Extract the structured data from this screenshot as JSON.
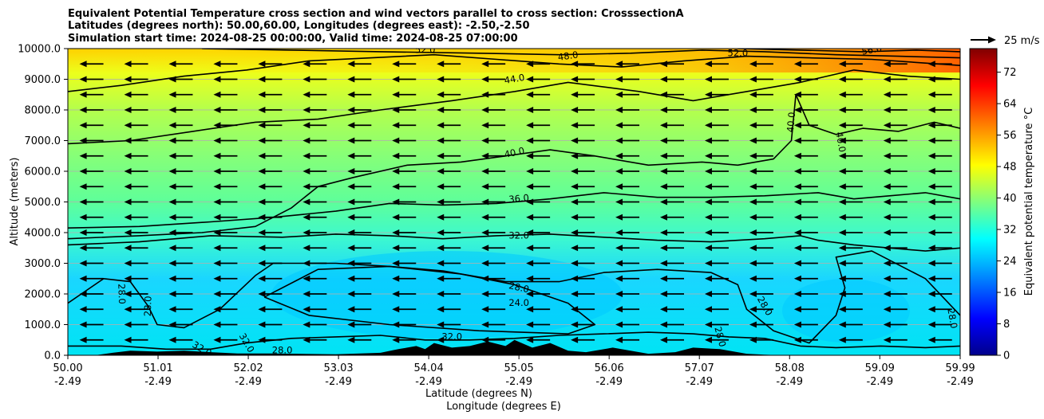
{
  "chart_data": {
    "type": "heatmap",
    "title_lines": [
      "Equivalent Potential Temperature cross section and wind vectors parallel to cross section: CrosssectionA",
      "Latitudes (degrees north): 50.00,60.00, Longitudes (degrees east): -2.50,-2.50",
      "Simulation start time: 2024-08-25 00:00:00, Valid time: 2024-08-25 07:00:00"
    ],
    "ylabel": "Altitude (meters)",
    "xlabel_lat": "Latitude (degrees N)",
    "xlabel_lon": "Longitude (degrees E)",
    "ylim": [
      0,
      10000
    ],
    "y_ticks": [
      "0.0",
      "1000.0",
      "2000.0",
      "3000.0",
      "4000.0",
      "5000.0",
      "6000.0",
      "7000.0",
      "8000.0",
      "9000.0",
      "10000.0"
    ],
    "y_tick_values": [
      0,
      1000,
      2000,
      3000,
      4000,
      5000,
      6000,
      7000,
      8000,
      9000,
      10000
    ],
    "xlim": [
      50.0,
      59.99
    ],
    "x_tick_values": [
      50.0,
      51.01,
      52.02,
      53.03,
      54.04,
      55.05,
      56.06,
      57.07,
      58.08,
      59.09,
      59.99
    ],
    "x_ticks_lat": [
      "50.00",
      "51.01",
      "52.02",
      "53.03",
      "54.04",
      "55.05",
      "56.06",
      "57.07",
      "58.08",
      "59.09",
      "59.99"
    ],
    "x_ticks_lon": [
      "-2.49",
      "-2.49",
      "-2.49",
      "-2.49",
      "-2.49",
      "-2.49",
      "-2.49",
      "-2.49",
      "-2.49",
      "-2.49",
      "-2.49"
    ],
    "colorbar": {
      "label": "Equivalent potential temperature  °C",
      "range": [
        0,
        78
      ],
      "ticks": [
        "0",
        "8",
        "16",
        "24",
        "32",
        "40",
        "48",
        "56",
        "64",
        "72"
      ],
      "tick_values": [
        0,
        8,
        16,
        24,
        32,
        40,
        48,
        56,
        64,
        72
      ]
    },
    "quiver_key": {
      "label": "25 m/s",
      "speed": 25
    },
    "wind": {
      "u": -25,
      "w": 0,
      "levels_m": [
        500,
        1000,
        1500,
        2000,
        2500,
        3000,
        3500,
        4000,
        4500,
        5000,
        5500,
        6000,
        6500,
        7000,
        7500,
        8000,
        8500,
        9000,
        9500
      ]
    },
    "contours": [
      {
        "value": 24,
        "label": "24.0",
        "points": [
          [
            52.2,
            1900
          ],
          [
            52.8,
            2800
          ],
          [
            53.6,
            2900
          ],
          [
            54.4,
            2650
          ],
          [
            55.0,
            2300
          ],
          [
            55.6,
            1700
          ],
          [
            55.9,
            1000
          ],
          [
            55.6,
            700
          ],
          [
            54.6,
            800
          ],
          [
            53.6,
            1000
          ],
          [
            52.7,
            1300
          ],
          [
            52.2,
            1900
          ]
        ]
      },
      {
        "value": 28,
        "label": "28.0",
        "points": [
          [
            50.0,
            1700
          ],
          [
            50.4,
            2500
          ],
          [
            50.7,
            2400
          ],
          [
            50.9,
            1600
          ],
          [
            51.0,
            1000
          ],
          [
            51.3,
            900
          ],
          [
            51.7,
            1500
          ],
          [
            52.1,
            2600
          ],
          [
            52.3,
            3000
          ],
          [
            53.0,
            3000
          ],
          [
            53.6,
            2900
          ],
          [
            54.2,
            2750
          ],
          [
            54.9,
            2400
          ],
          [
            55.5,
            2400
          ],
          [
            56.0,
            2700
          ],
          [
            56.6,
            2800
          ],
          [
            57.2,
            2700
          ],
          [
            57.5,
            2300
          ],
          [
            57.6,
            1500
          ],
          [
            57.9,
            800
          ],
          [
            58.3,
            400
          ],
          [
            58.6,
            1300
          ],
          [
            58.7,
            2200
          ],
          [
            58.6,
            3200
          ],
          [
            59.0,
            3400
          ],
          [
            59.6,
            2500
          ],
          [
            59.99,
            1300
          ]
        ]
      },
      {
        "value": 32,
        "label": "32.0",
        "points": [
          [
            50.0,
            300
          ],
          [
            50.6,
            300
          ],
          [
            51.1,
            200
          ],
          [
            51.6,
            200
          ],
          [
            52.0,
            400
          ],
          [
            52.5,
            550
          ],
          [
            53.0,
            600
          ],
          [
            53.5,
            650
          ],
          [
            54.0,
            500
          ],
          [
            54.5,
            500
          ],
          [
            55.0,
            550
          ],
          [
            55.5,
            650
          ],
          [
            56.0,
            700
          ],
          [
            56.5,
            750
          ],
          [
            57.0,
            700
          ],
          [
            57.4,
            600
          ],
          [
            57.8,
            550
          ],
          [
            58.2,
            300
          ],
          [
            58.6,
            250
          ],
          [
            59.1,
            300
          ],
          [
            59.6,
            250
          ],
          [
            59.99,
            300
          ]
        ]
      },
      {
        "value": 32,
        "label": "32.0",
        "points": [
          [
            50.0,
            3600
          ],
          [
            50.8,
            3700
          ],
          [
            51.6,
            3900
          ],
          [
            52.4,
            3850
          ],
          [
            53.0,
            3950
          ],
          [
            53.6,
            3900
          ],
          [
            54.2,
            3800
          ],
          [
            54.8,
            3900
          ],
          [
            55.4,
            3950
          ],
          [
            56.0,
            3850
          ],
          [
            56.6,
            3750
          ],
          [
            57.2,
            3700
          ],
          [
            57.8,
            3800
          ],
          [
            58.2,
            3900
          ],
          [
            58.4,
            3750
          ],
          [
            58.8,
            3600
          ],
          [
            59.2,
            3500
          ],
          [
            59.6,
            3400
          ],
          [
            59.99,
            3500
          ]
        ]
      },
      {
        "value": 36,
        "label": "36.0",
        "points": [
          [
            50.0,
            4150
          ],
          [
            50.8,
            4200
          ],
          [
            51.6,
            4350
          ],
          [
            52.3,
            4500
          ],
          [
            53.0,
            4700
          ],
          [
            53.6,
            4950
          ],
          [
            54.2,
            4900
          ],
          [
            54.8,
            4950
          ],
          [
            55.4,
            5100
          ],
          [
            56.0,
            5300
          ],
          [
            56.6,
            5150
          ],
          [
            57.2,
            5150
          ],
          [
            57.8,
            5200
          ],
          [
            58.4,
            5300
          ],
          [
            58.8,
            5100
          ],
          [
            59.2,
            5200
          ],
          [
            59.6,
            5300
          ],
          [
            59.99,
            5100
          ]
        ]
      },
      {
        "value": 40,
        "label": "40.0",
        "points": [
          [
            50.0,
            3800
          ],
          [
            50.8,
            3900
          ],
          [
            51.5,
            4000
          ],
          [
            52.1,
            4200
          ],
          [
            52.5,
            4800
          ],
          [
            52.8,
            5500
          ],
          [
            53.2,
            5800
          ],
          [
            53.8,
            6200
          ],
          [
            54.4,
            6300
          ],
          [
            54.9,
            6500
          ],
          [
            55.4,
            6700
          ],
          [
            55.9,
            6500
          ],
          [
            56.5,
            6200
          ],
          [
            57.1,
            6300
          ],
          [
            57.5,
            6200
          ],
          [
            57.9,
            6400
          ],
          [
            58.1,
            7000
          ],
          [
            58.15,
            8500
          ],
          [
            58.3,
            7500
          ],
          [
            58.6,
            7200
          ],
          [
            58.9,
            7400
          ],
          [
            59.3,
            7300
          ],
          [
            59.7,
            7600
          ],
          [
            59.99,
            7400
          ]
        ]
      },
      {
        "value": 44,
        "label": "44.0",
        "points": [
          [
            50.0,
            6900
          ],
          [
            50.7,
            7000
          ],
          [
            51.4,
            7300
          ],
          [
            52.1,
            7600
          ],
          [
            52.8,
            7700
          ],
          [
            53.5,
            8000
          ],
          [
            54.3,
            8300
          ],
          [
            55.0,
            8600
          ],
          [
            55.6,
            8900
          ],
          [
            56.4,
            8600
          ],
          [
            57.0,
            8300
          ],
          [
            57.6,
            8600
          ],
          [
            58.2,
            8900
          ],
          [
            58.8,
            9300
          ],
          [
            59.4,
            9100
          ],
          [
            59.99,
            9000
          ]
        ]
      },
      {
        "value": 48,
        "label": "48.0",
        "points": [
          [
            50.0,
            8600
          ],
          [
            50.6,
            8800
          ],
          [
            51.3,
            9100
          ],
          [
            52.0,
            9300
          ],
          [
            52.7,
            9600
          ],
          [
            53.4,
            9700
          ],
          [
            54.1,
            9800
          ],
          [
            54.8,
            9650
          ],
          [
            55.5,
            9500
          ],
          [
            56.2,
            9400
          ],
          [
            56.9,
            9600
          ],
          [
            57.6,
            9750
          ],
          [
            58.3,
            9700
          ],
          [
            59.0,
            9650
          ],
          [
            59.99,
            9450
          ]
        ]
      },
      {
        "value": 52,
        "label": "52.0",
        "points": [
          [
            51.5,
            10000
          ],
          [
            52.5,
            9950
          ],
          [
            53.5,
            9900
          ],
          [
            54.6,
            9850
          ],
          [
            55.5,
            9800
          ],
          [
            56.3,
            9850
          ],
          [
            57.1,
            9950
          ],
          [
            57.8,
            9900
          ],
          [
            58.6,
            9800
          ],
          [
            59.3,
            9750
          ],
          [
            59.99,
            9700
          ]
        ]
      },
      {
        "value": 56,
        "label": "56.0",
        "points": [
          [
            57.5,
            10000
          ],
          [
            58.2,
            9950
          ],
          [
            58.9,
            9900
          ],
          [
            59.5,
            9950
          ],
          [
            59.99,
            9900
          ]
        ]
      }
    ],
    "contour_labels": [
      {
        "text": "52.0",
        "x": 54.0,
        "y": 9950,
        "rot": 0
      },
      {
        "text": "48.0",
        "x": 55.6,
        "y": 9750,
        "rot": -8
      },
      {
        "text": "52.0",
        "x": 57.5,
        "y": 9850,
        "rot": 0
      },
      {
        "text": "56.0",
        "x": 59.0,
        "y": 9950,
        "rot": -10
      },
      {
        "text": "44.0",
        "x": 55.0,
        "y": 9000,
        "rot": -10
      },
      {
        "text": "40.0",
        "x": 55.0,
        "y": 6600,
        "rot": -12
      },
      {
        "text": "40.0",
        "x": 58.1,
        "y": 7600,
        "rot": -85
      },
      {
        "text": "40.0",
        "x": 58.65,
        "y": 6950,
        "rot": 80
      },
      {
        "text": "36.0",
        "x": 55.05,
        "y": 5100,
        "rot": -5
      },
      {
        "text": "32.0",
        "x": 55.05,
        "y": 3900,
        "rot": 0
      },
      {
        "text": "28.0",
        "x": 55.05,
        "y": 2200,
        "rot": 12
      },
      {
        "text": "24.0",
        "x": 55.05,
        "y": 1700,
        "rot": 0
      },
      {
        "text": "28.0",
        "x": 50.6,
        "y": 2000,
        "rot": 88
      },
      {
        "text": "28.0",
        "x": 50.9,
        "y": 1600,
        "rot": -88
      },
      {
        "text": "32.0",
        "x": 52.0,
        "y": 400,
        "rot": 60
      },
      {
        "text": "32.0",
        "x": 51.5,
        "y": 200,
        "rot": 30
      },
      {
        "text": "28.0",
        "x": 52.4,
        "y": 150,
        "rot": 0
      },
      {
        "text": "32.0",
        "x": 54.3,
        "y": 600,
        "rot": 0
      },
      {
        "text": "28.0",
        "x": 57.3,
        "y": 600,
        "rot": 75
      },
      {
        "text": "28.0",
        "x": 57.8,
        "y": 1600,
        "rot": 60
      },
      {
        "text": "28.0",
        "x": 59.9,
        "y": 1200,
        "rot": 80
      }
    ],
    "terrain": [
      [
        50.0,
        0
      ],
      [
        50.3,
        0
      ],
      [
        50.5,
        80
      ],
      [
        50.7,
        150
      ],
      [
        51.0,
        120
      ],
      [
        51.3,
        150
      ],
      [
        51.6,
        100
      ],
      [
        51.9,
        60
      ],
      [
        52.3,
        60
      ],
      [
        53.0,
        30
      ],
      [
        53.5,
        80
      ],
      [
        53.7,
        200
      ],
      [
        53.9,
        300
      ],
      [
        54.0,
        200
      ],
      [
        54.1,
        400
      ],
      [
        54.3,
        250
      ],
      [
        54.5,
        300
      ],
      [
        54.7,
        450
      ],
      [
        54.9,
        300
      ],
      [
        55.0,
        500
      ],
      [
        55.2,
        250
      ],
      [
        55.4,
        400
      ],
      [
        55.6,
        150
      ],
      [
        55.8,
        100
      ],
      [
        56.1,
        250
      ],
      [
        56.3,
        150
      ],
      [
        56.5,
        50
      ],
      [
        56.8,
        100
      ],
      [
        57.0,
        250
      ],
      [
        57.3,
        200
      ],
      [
        57.6,
        50
      ],
      [
        57.8,
        20
      ],
      [
        58.0,
        0
      ],
      [
        59.99,
        0
      ]
    ]
  }
}
